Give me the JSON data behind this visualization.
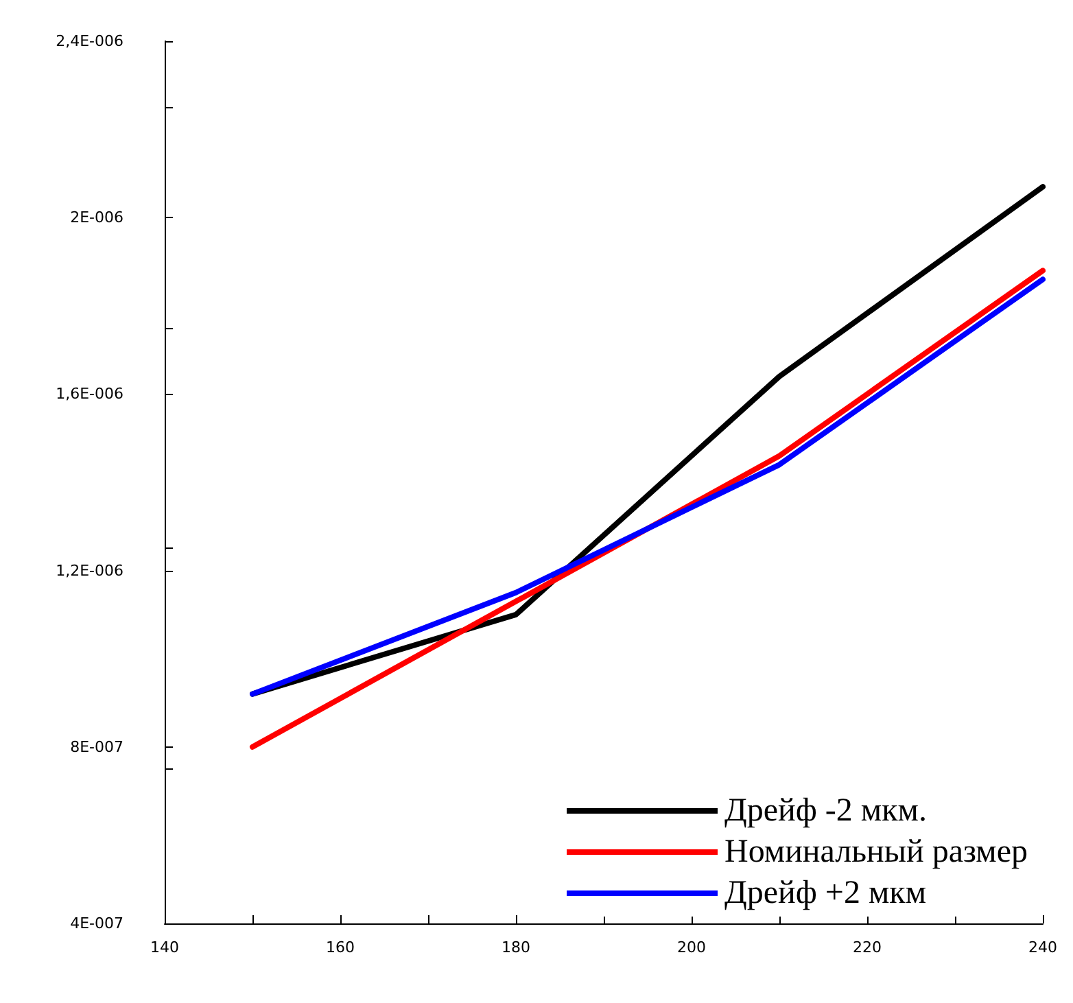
{
  "chart_data": {
    "type": "line",
    "x": [
      150,
      180,
      210,
      240
    ],
    "series": [
      {
        "name": "Дрейф -2 мкм.",
        "color": "#000000",
        "values": [
          9.2e-07,
          1.1e-06,
          1.64e-06,
          2.07e-06
        ]
      },
      {
        "name": "Номинальный размер",
        "color": "#ff0000",
        "values": [
          8e-07,
          1.13e-06,
          1.46e-06,
          1.88e-06
        ]
      },
      {
        "name": "Дрейф +2 мкм",
        "color": "#0000ff",
        "values": [
          9.2e-07,
          1.15e-06,
          1.44e-06,
          1.86e-06
        ]
      }
    ],
    "xlim": [
      140,
      240
    ],
    "xticks": [
      140,
      160,
      180,
      200,
      220,
      240
    ],
    "ylim": [
      4e-07,
      2.4e-06
    ],
    "yticks": [
      {
        "value": 4e-07,
        "label": "4E-007"
      },
      {
        "value": 8e-07,
        "label": "8E-007"
      },
      {
        "value": 1.2e-06,
        "label": "1,2E-006"
      },
      {
        "value": 1.6e-06,
        "label": "1,6E-006"
      },
      {
        "value": 2e-06,
        "label": "2E-006"
      },
      {
        "value": 2.4e-06,
        "label": "2,4E-006"
      }
    ],
    "grid": false,
    "legend": "bottom right",
    "marker": "none",
    "line_style": "solid"
  }
}
